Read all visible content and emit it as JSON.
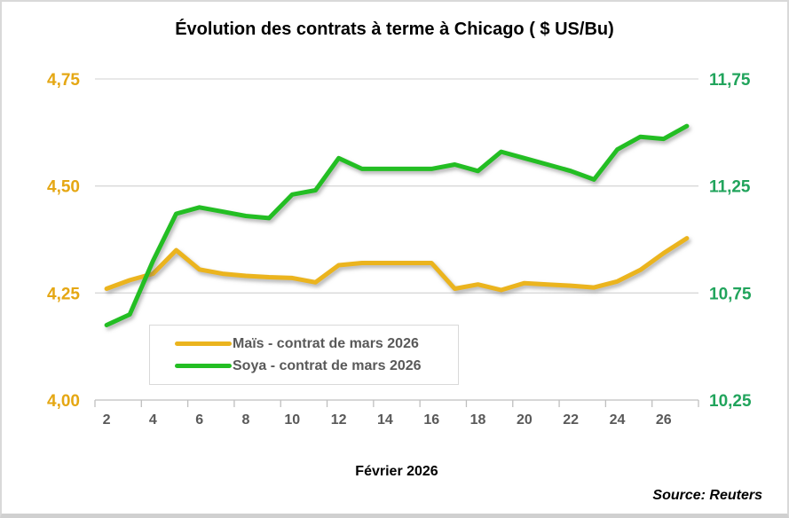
{
  "title": "Évolution des contrats à terme à Chicago ( $ US/Bu)",
  "source_note": "Source: Reuters",
  "chart_data": {
    "type": "line",
    "grid": true,
    "legend_position": "inside-bottom-left",
    "x_axis": {
      "title": "Février 2026",
      "days": [
        2,
        3,
        4,
        5,
        6,
        7,
        8,
        9,
        10,
        11,
        12,
        13,
        14,
        15,
        16,
        17,
        18,
        19,
        20,
        21,
        22,
        23,
        24,
        25,
        26,
        27
      ],
      "tick_labels": [
        "2",
        "4",
        "6",
        "8",
        "10",
        "12",
        "14",
        "16",
        "18",
        "20",
        "22",
        "24",
        "26"
      ],
      "label_color": "#595959"
    },
    "left_axis": {
      "range": [
        4.0,
        4.75
      ],
      "ticks": [
        4.0,
        4.25,
        4.5,
        4.75
      ],
      "tick_labels": [
        "4,00",
        "4,25",
        "4,50",
        "4,75"
      ],
      "color": "#E5A713"
    },
    "right_axis": {
      "range": [
        10.25,
        11.75
      ],
      "ticks": [
        10.25,
        10.75,
        11.25,
        11.75
      ],
      "tick_labels": [
        "10,25",
        "10,75",
        "11,25",
        "11,75"
      ],
      "color": "#21A45C"
    },
    "series": [
      {
        "name": "Maïs - contrat de mars 2026",
        "axis": "left",
        "color": "#EBB41E",
        "values": [
          4.26,
          4.28,
          4.295,
          4.35,
          4.305,
          4.295,
          4.29,
          4.287,
          4.285,
          4.275,
          4.315,
          4.32,
          4.32,
          4.32,
          4.32,
          4.26,
          4.27,
          4.257,
          4.273,
          4.27,
          4.267,
          4.263,
          4.277,
          4.304,
          4.343,
          4.378
        ]
      },
      {
        "name": "Soya - contrat de mars 2026",
        "axis": "right",
        "color": "#23BE23",
        "values": [
          10.6,
          10.65,
          10.9,
          11.12,
          11.15,
          11.13,
          11.11,
          11.1,
          11.21,
          11.23,
          11.38,
          11.33,
          11.33,
          11.33,
          11.33,
          11.35,
          11.32,
          11.41,
          11.38,
          11.35,
          11.32,
          11.28,
          11.42,
          11.48,
          11.47,
          11.53
        ]
      }
    ],
    "colors": {
      "gridline": "#D9D9D9",
      "axis_line": "#BFBFBF"
    }
  }
}
